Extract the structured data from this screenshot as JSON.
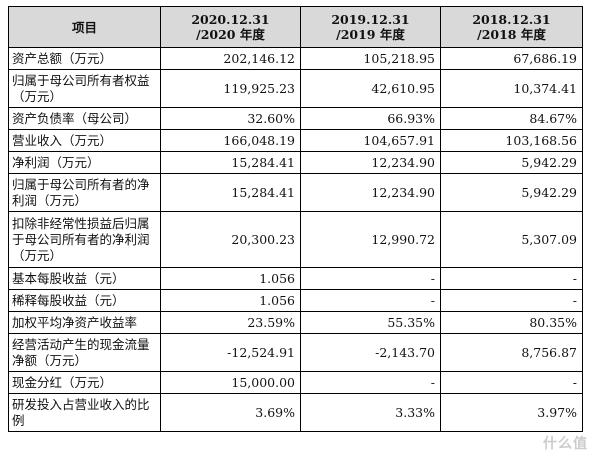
{
  "table": {
    "headers": [
      {
        "line1": "项目",
        "line2": ""
      },
      {
        "line1": "2020.12.31",
        "line2": "/2020 年度"
      },
      {
        "line1": "2019.12.31",
        "line2": "/2019 年度"
      },
      {
        "line1": "2018.12.31",
        "line2": "/2018 年度"
      }
    ],
    "rows": [
      {
        "label": "资产总额（万元）",
        "v2020": "202,146.12",
        "v2019": "105,218.95",
        "v2018": "67,686.19"
      },
      {
        "label": "归属于母公司所有者权益（万元）",
        "v2020": "119,925.23",
        "v2019": "42,610.95",
        "v2018": "10,374.41"
      },
      {
        "label": "资产负债率（母公司）",
        "v2020": "32.60%",
        "v2019": "66.93%",
        "v2018": "84.67%"
      },
      {
        "label": "营业收入（万元）",
        "v2020": "166,048.19",
        "v2019": "104,657.91",
        "v2018": "103,168.56"
      },
      {
        "label": "净利润（万元）",
        "v2020": "15,284.41",
        "v2019": "12,234.90",
        "v2018": "5,942.29"
      },
      {
        "label": "归属于母公司所有者的净利润（万元）",
        "v2020": "15,284.41",
        "v2019": "12,234.90",
        "v2018": "5,942.29"
      },
      {
        "label": "扣除非经常性损益后归属于母公司所有者的净利润（万元）",
        "v2020": "20,300.23",
        "v2019": "12,990.72",
        "v2018": "5,307.09"
      },
      {
        "label": "基本每股收益（元）",
        "v2020": "1.056",
        "v2019": "-",
        "v2018": "-"
      },
      {
        "label": "稀释每股收益（元）",
        "v2020": "1.056",
        "v2019": "-",
        "v2018": "-"
      },
      {
        "label": "加权平均净资产收益率",
        "v2020": "23.59%",
        "v2019": "55.35%",
        "v2018": "80.35%"
      },
      {
        "label": "经营活动产生的现金流量净额（万元）",
        "v2020": "-12,524.91",
        "v2019": "-2,143.70",
        "v2018": "8,756.87"
      },
      {
        "label": "现金分红（万元）",
        "v2020": "15,000.00",
        "v2019": "-",
        "v2018": "-"
      },
      {
        "label": "研发投入占营业收入的比例",
        "v2020": "3.69%",
        "v2019": "3.33%",
        "v2018": "3.97%"
      }
    ]
  },
  "watermark": {
    "text": "什么值"
  }
}
